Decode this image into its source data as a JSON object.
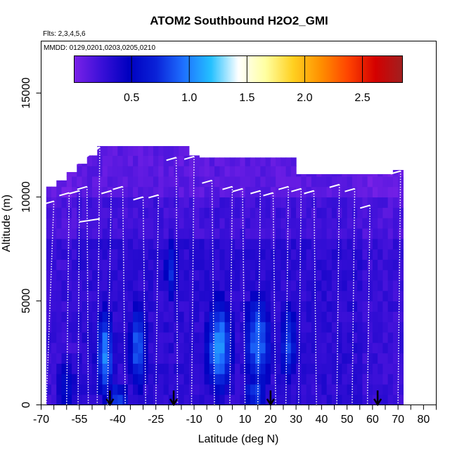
{
  "chart_data": {
    "type": "heatmap",
    "title": "ATOM2 Southbound H2O2_GMI",
    "flights_note": "Flts: 2,3,4,5,6",
    "dates_note": "MMDD: 0129,0201,0203,0205,0210",
    "xlabel": "Latitude (deg N)",
    "ylabel": "Altitude (m)",
    "xlim": [
      -70,
      85
    ],
    "ylim": [
      0,
      17500
    ],
    "x_ticks": [
      -70,
      -55,
      -40,
      -25,
      -10,
      0,
      10,
      20,
      30,
      40,
      50,
      60,
      70,
      80
    ],
    "x_tick_labels": [
      "-70",
      "-55",
      "-40",
      "-25",
      "-10",
      "0",
      "10",
      "20",
      "30",
      "40",
      "50",
      "60",
      "70",
      "80"
    ],
    "x_minor_ticks": [
      -65,
      -60,
      -50,
      -45,
      -35,
      -30,
      -20,
      -15,
      -5,
      5,
      15,
      25,
      35,
      45,
      55,
      65,
      75,
      85
    ],
    "y_ticks": [
      0,
      5000,
      10000,
      15000
    ],
    "y_tick_labels": [
      "0",
      "5000",
      "10000",
      "15000"
    ],
    "colorbar": {
      "range": [
        0.0,
        2.85
      ],
      "ticks": [
        0.5,
        1.0,
        1.5,
        2.0,
        2.5
      ],
      "tick_labels": [
        "0.5",
        "1.0",
        "1.5",
        "2.0",
        "2.5"
      ],
      "colors": [
        "#7b22e8",
        "#3b10d8",
        "#0000c0",
        "#0a22d8",
        "#1e70ff",
        "#24c0ff",
        "#ffffff",
        "#ffffa0",
        "#ffd020",
        "#ff9000",
        "#ff4400",
        "#d40000",
        "#a02020"
      ]
    },
    "arrow_latitudes": [
      -43,
      -18,
      20,
      62
    ],
    "column_tops": [
      {
        "lat0": -68,
        "lat1": -64,
        "top": 10500
      },
      {
        "lat0": -64,
        "lat1": -61,
        "top": 10800
      },
      {
        "lat0": -61,
        "lat1": -57,
        "top": 11200
      },
      {
        "lat0": -57,
        "lat1": -53,
        "top": 11600
      },
      {
        "lat0": -53,
        "lat1": -49,
        "top": 12000
      },
      {
        "lat0": -49,
        "lat1": -45,
        "top": 12450
      },
      {
        "lat0": -45,
        "lat1": -13,
        "top": 12450
      },
      {
        "lat0": -13,
        "lat1": -9,
        "top": 12000
      },
      {
        "lat0": -9,
        "lat1": 30,
        "top": 11900
      },
      {
        "lat0": 30,
        "lat1": 67,
        "top": 11100
      },
      {
        "lat0": 67,
        "lat1": 71,
        "top": 11300
      }
    ],
    "profiles": [
      {
        "lat_top": -65,
        "lat_bot": -68,
        "top": 9800
      },
      {
        "lat_top": -59,
        "lat_bot": -60,
        "top": 10200
      },
      {
        "lat_top": -55,
        "lat_bot": -55.5,
        "top": 10300
      },
      {
        "lat_top": -52,
        "lat_bot": -51.5,
        "top": 10500
      },
      {
        "lat_top": -47,
        "lat_bot": -48,
        "top": 12400
      },
      {
        "lat_top": -42.5,
        "lat_bot": -44,
        "top": 10300
      },
      {
        "lat_top": -38,
        "lat_bot": -37,
        "top": 10500
      },
      {
        "lat_top": -30,
        "lat_bot": -29,
        "top": 10000
      },
      {
        "lat_top": -24,
        "lat_bot": -25,
        "top": 10100
      },
      {
        "lat_top": -17,
        "lat_bot": -16.5,
        "top": 11900
      },
      {
        "lat_top": -10,
        "lat_bot": -11,
        "top": 11950
      },
      {
        "lat_top": -3,
        "lat_bot": -2,
        "top": 10800
      },
      {
        "lat_top": 5,
        "lat_bot": 4,
        "top": 10500
      },
      {
        "lat_top": 9,
        "lat_bot": 10,
        "top": 10400
      },
      {
        "lat_top": 16,
        "lat_bot": 15,
        "top": 10300
      },
      {
        "lat_top": 21,
        "lat_bot": 22,
        "top": 10200
      },
      {
        "lat_top": 27,
        "lat_bot": 26,
        "top": 10500
      },
      {
        "lat_top": 32,
        "lat_bot": 31,
        "top": 10400
      },
      {
        "lat_top": 37,
        "lat_bot": 38,
        "top": 10300
      },
      {
        "lat_top": 47,
        "lat_bot": 46,
        "top": 10600
      },
      {
        "lat_top": 53,
        "lat_bot": 52,
        "top": 10400
      },
      {
        "lat_top": 59,
        "lat_bot": 58,
        "top": 9600
      },
      {
        "lat_top": 71,
        "lat_bot": 70,
        "top": 11250
      }
    ],
    "hotspots": [
      {
        "lat": -45,
        "alt": 2500,
        "value": 1.0,
        "sx": 4,
        "sy": 2500
      },
      {
        "lat": -32,
        "alt": 2800,
        "value": 0.9,
        "sx": 4,
        "sy": 2500
      },
      {
        "lat": -19,
        "alt": 6500,
        "value": 0.75,
        "sx": 3,
        "sy": 1800
      },
      {
        "lat": -40,
        "alt": 300,
        "value": 0.8,
        "sx": 5,
        "sy": 900
      },
      {
        "lat": 0,
        "alt": 2800,
        "value": 1.05,
        "sx": 6,
        "sy": 2600
      },
      {
        "lat": 15,
        "alt": 3000,
        "value": 0.95,
        "sx": 6,
        "sy": 2700
      },
      {
        "lat": 27,
        "alt": 3000,
        "value": 0.8,
        "sx": 4,
        "sy": 2400
      },
      {
        "lat": 14,
        "alt": 600,
        "value": 0.85,
        "sx": 5,
        "sy": 900
      },
      {
        "lat": -60,
        "alt": 1000,
        "value": 0.55,
        "sx": 5,
        "sy": 2000
      }
    ]
  }
}
